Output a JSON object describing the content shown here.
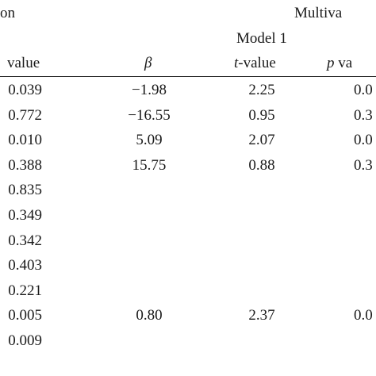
{
  "header": {
    "group_left_fragment": "on",
    "group_right_fragment": "Multiva",
    "model_label": "Model 1",
    "col_pvalue_left_tail": "value",
    "col_beta_symbol": "β",
    "col_t_prefix": "t",
    "col_t_suffix": "-value",
    "col_p_right_symbol": "p",
    "col_p_right_fragment": "va"
  },
  "rows": [
    {
      "p_left": "0.039",
      "beta": "−1.98",
      "t": "2.25",
      "p_right": "0.0"
    },
    {
      "p_left": "0.772",
      "beta": "−16.55",
      "t": "0.95",
      "p_right": "0.3"
    },
    {
      "p_left": "0.010",
      "beta": "5.09",
      "t": "2.07",
      "p_right": "0.0"
    },
    {
      "p_left": "0.388",
      "beta": "15.75",
      "t": "0.88",
      "p_right": "0.3"
    },
    {
      "p_left": "0.835",
      "beta": "",
      "t": "",
      "p_right": ""
    },
    {
      "p_left": "0.349",
      "beta": "",
      "t": "",
      "p_right": ""
    },
    {
      "p_left": "0.342",
      "beta": "",
      "t": "",
      "p_right": ""
    },
    {
      "p_left": "0.403",
      "beta": "",
      "t": "",
      "p_right": ""
    },
    {
      "p_left": "0.221",
      "beta": "",
      "t": "",
      "p_right": ""
    },
    {
      "p_left": "0.005",
      "beta": "0.80",
      "t": "2.37",
      "p_right": "0.0"
    },
    {
      "p_left": "0.009",
      "beta": "",
      "t": "",
      "p_right": ""
    }
  ]
}
